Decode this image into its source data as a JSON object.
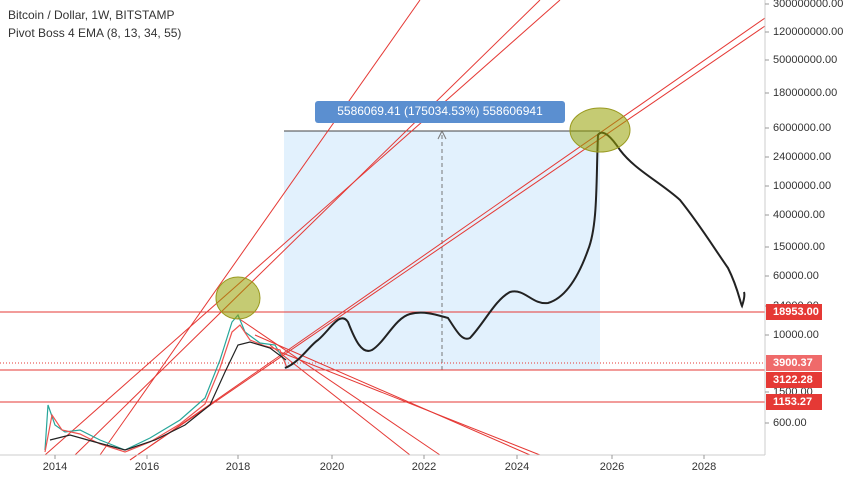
{
  "header": {
    "title": "Bitcoin / Dollar, 1W, BITSTAMP",
    "indicator": "Pivot Boss 4 EMA (8, 13, 34, 55)"
  },
  "measure_label": "5586069.41 (175034.53%) 558606941",
  "price_axis": {
    "ticks": [
      "300000000.00",
      "120000000.00",
      "50000000.00",
      "18000000.00",
      "6000000.00",
      "2400000.00",
      "1000000.00",
      "400000.00",
      "150000.00",
      "60000.00",
      "24000.00",
      "10000.00",
      "1500.00",
      "600.00"
    ]
  },
  "price_badges": [
    "18953.00",
    "3900.37",
    "3122.28",
    "1153.27"
  ],
  "time_axis": [
    "2014",
    "2016",
    "2018",
    "2020",
    "2022",
    "2024",
    "2026",
    "2028"
  ]
}
